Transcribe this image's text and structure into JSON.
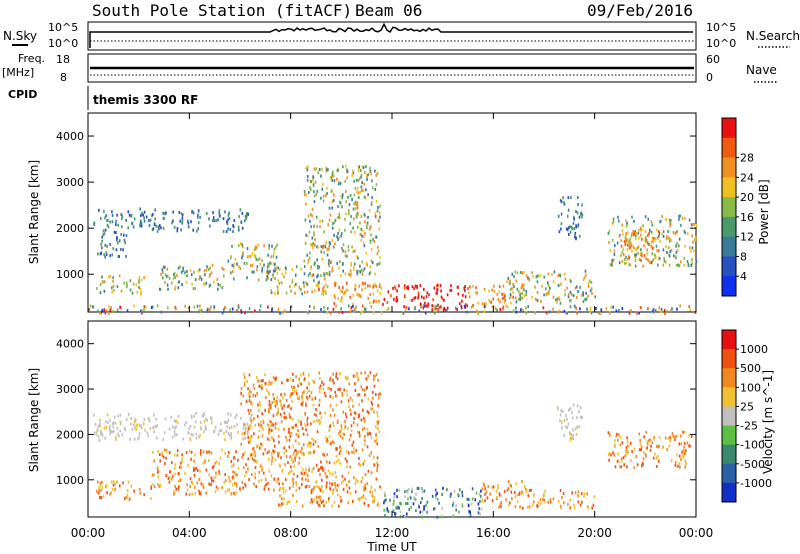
{
  "header": {
    "station": "South Pole Station (fitACF)",
    "beam": "Beam 06",
    "date": "09/Feb/2016"
  },
  "nsky_panel": {
    "left_label": "N.Sky",
    "right_label": "N.Search",
    "left_ticks": [
      "10^5",
      "10^0"
    ],
    "right_ticks": [
      "10^5",
      "10^0"
    ]
  },
  "freq_panel": {
    "left_label_1": "Freq.",
    "left_label_2": "[MHz]",
    "right_label": "Nave",
    "left_ticks": [
      "18",
      "8"
    ],
    "right_ticks": [
      "60",
      "0"
    ]
  },
  "cpid": {
    "label": "CPID",
    "value": "themis 3300 RF"
  },
  "chart_data": [
    {
      "type": "heatmap",
      "name": "power",
      "ylabel": "Slant Range [km]",
      "xlabel": "Time UT",
      "ylim": [
        180,
        4500
      ],
      "yticks": [
        1000,
        2000,
        3000,
        4000
      ],
      "xticks": [
        "00:00",
        "04:00",
        "08:00",
        "12:00",
        "16:00",
        "20:00",
        "00:00"
      ],
      "colorbar": {
        "label": "Power [dB]",
        "ticks": [
          "4",
          "8",
          "12",
          "16",
          "20",
          "24",
          "28"
        ],
        "colors": [
          "#1030f0",
          "#2850c0",
          "#3a7a9a",
          "#4a9a6a",
          "#8aba4a",
          "#f0c020",
          "#f09020",
          "#f05a10",
          "#e81010"
        ]
      },
      "regions": [
        {
          "t": [
            0.2,
            2.5
          ],
          "r": [
            2000,
            2450
          ],
          "level": "low"
        },
        {
          "t": [
            0.2,
            1.5
          ],
          "r": [
            1400,
            2000
          ],
          "level": "low"
        },
        {
          "t": [
            2.5,
            6.3
          ],
          "r": [
            1950,
            2450
          ],
          "level": "low"
        },
        {
          "t": [
            0.3,
            2.2
          ],
          "r": [
            600,
            1000
          ],
          "level": "mid"
        },
        {
          "t": [
            2.8,
            5.5
          ],
          "r": [
            700,
            1250
          ],
          "level": "mid"
        },
        {
          "t": [
            5.5,
            7.5
          ],
          "r": [
            900,
            1700
          ],
          "level": "mid"
        },
        {
          "t": [
            7.0,
            9.5
          ],
          "r": [
            600,
            1200
          ],
          "level": "mid"
        },
        {
          "t": [
            8.5,
            11.5
          ],
          "r": [
            1000,
            3400
          ],
          "level": "mid"
        },
        {
          "t": [
            9.0,
            11.6
          ],
          "r": [
            350,
            850
          ],
          "level": "high"
        },
        {
          "t": [
            11.6,
            15.0
          ],
          "r": [
            250,
            800
          ],
          "level": "very_high"
        },
        {
          "t": [
            15.0,
            16.8
          ],
          "r": [
            300,
            800
          ],
          "level": "high"
        },
        {
          "t": [
            16.5,
            20.0
          ],
          "r": [
            400,
            1100
          ],
          "level": "mid"
        },
        {
          "t": [
            18.5,
            19.5
          ],
          "r": [
            1800,
            2700
          ],
          "level": "low"
        },
        {
          "t": [
            20.5,
            24.0
          ],
          "r": [
            1200,
            2300
          ],
          "level": "mid"
        },
        {
          "t": [
            21.0,
            22.5
          ],
          "r": [
            1300,
            2000
          ],
          "level": "high"
        },
        {
          "t": [
            0,
            24
          ],
          "r": [
            180,
            350
          ],
          "level": "mixed"
        }
      ]
    },
    {
      "type": "heatmap",
      "name": "velocity",
      "ylabel": "Slant Range [km]",
      "xlabel": "Time UT",
      "ylim": [
        180,
        4500
      ],
      "yticks": [
        1000,
        2000,
        3000,
        4000
      ],
      "xticks": [
        "00:00",
        "04:00",
        "08:00",
        "12:00",
        "16:00",
        "20:00",
        "00:00"
      ],
      "colorbar": {
        "label": "Velocity [m s^-1]",
        "ticks": [
          "1000",
          "500",
          "100",
          "25",
          "-25",
          "-100",
          "-500",
          "-1000"
        ],
        "colors": [
          "#1030c8",
          "#2c60a8",
          "#3a8a70",
          "#5cc040",
          "#c0c0c0",
          "#f0c030",
          "#f08a20",
          "#f05010",
          "#e81010"
        ]
      },
      "regions": [
        {
          "t": [
            0.2,
            6.5
          ],
          "r": [
            1900,
            2500
          ],
          "level": "gray"
        },
        {
          "t": [
            0.3,
            2.5
          ],
          "r": [
            600,
            1000
          ],
          "level": "orange"
        },
        {
          "t": [
            2.5,
            6.0
          ],
          "r": [
            700,
            1700
          ],
          "level": "orange"
        },
        {
          "t": [
            6.0,
            11.5
          ],
          "r": [
            800,
            3400
          ],
          "level": "orange"
        },
        {
          "t": [
            7.5,
            11.5
          ],
          "r": [
            450,
            850
          ],
          "level": "orange"
        },
        {
          "t": [
            11.6,
            15.5
          ],
          "r": [
            200,
            850
          ],
          "level": "greenblue"
        },
        {
          "t": [
            15.5,
            17.5
          ],
          "r": [
            400,
            1000
          ],
          "level": "orange"
        },
        {
          "t": [
            17.5,
            20.0
          ],
          "r": [
            400,
            800
          ],
          "level": "orange"
        },
        {
          "t": [
            18.5,
            19.5
          ],
          "r": [
            1900,
            2700
          ],
          "level": "gray"
        },
        {
          "t": [
            20.5,
            23.8
          ],
          "r": [
            1300,
            2100
          ],
          "level": "orange"
        }
      ]
    }
  ]
}
